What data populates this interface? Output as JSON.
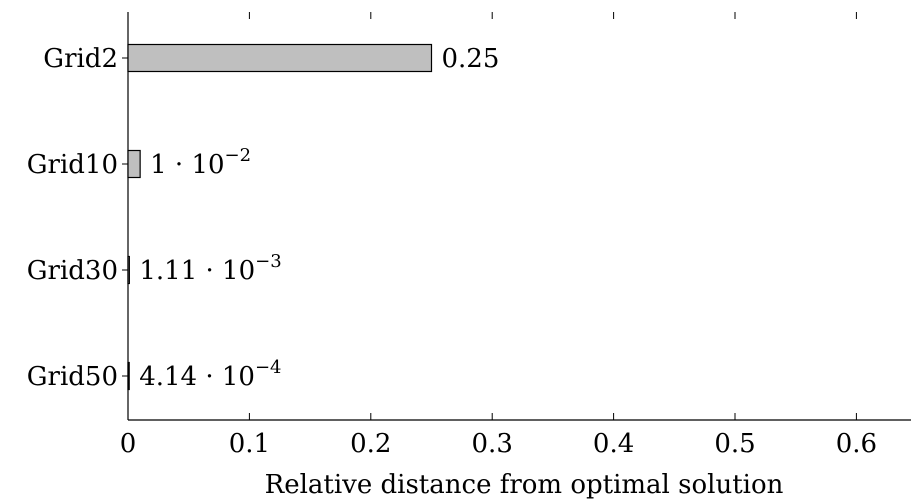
{
  "chart_data": {
    "type": "bar",
    "orientation": "horizontal",
    "title": "",
    "xlabel": "Relative distance from optimal solution",
    "ylabel": "",
    "categories": [
      "Grid2",
      "Grid10",
      "Grid30",
      "Grid50"
    ],
    "values": [
      0.25,
      0.01,
      0.00111,
      0.000414
    ],
    "data_labels": [
      {
        "mantissa": "0.25",
        "exponent": ""
      },
      {
        "mantissa": "1 · 10",
        "exponent": "−2"
      },
      {
        "mantissa": "1.11 · 10",
        "exponent": "−3"
      },
      {
        "mantissa": "4.14 · 10",
        "exponent": "−4"
      }
    ],
    "xlim": [
      0,
      0.65
    ],
    "xticks": [
      0,
      0.1,
      0.2,
      0.3,
      0.4,
      0.5,
      0.6
    ],
    "xtick_labels": [
      "0",
      "0.1",
      "0.2",
      "0.3",
      "0.4",
      "0.5",
      "0.6"
    ],
    "grid": false,
    "legend": "none",
    "colors": {
      "bar_fill": "#bfbfbf",
      "bar_stroke": "#000000",
      "axis": "#000000"
    }
  }
}
